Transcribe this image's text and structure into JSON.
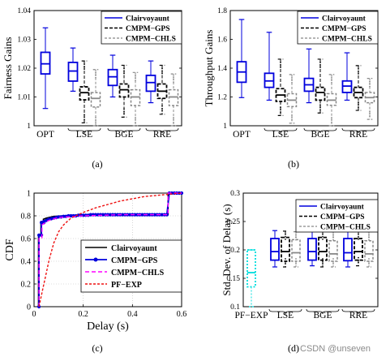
{
  "colors": {
    "clair": "#0000dd",
    "gps": "#000000",
    "chls": "#888888",
    "pfexp": "#ee1111",
    "pfbox": "#00dddd",
    "cdf_chls": "#ff00ff"
  },
  "watermark": "CSDN @unseven",
  "chart_data": [
    {
      "id": "a",
      "type": "box",
      "caption": "(a)",
      "ylabel": "Fairness Gains",
      "ylim": [
        1,
        1.04
      ],
      "yticks": [
        "1",
        "1.01",
        "1.02",
        "1.03",
        "1.04"
      ],
      "groups": [
        "OPT",
        "LSE",
        "BGE",
        "RRE"
      ],
      "legend": [
        "Clairvoyaunt",
        "CMPM−GPS",
        "CMPM−CHLS"
      ],
      "boxes": [
        {
          "group": 0,
          "series": 0,
          "min": 1.006,
          "q1": 1.018,
          "med": 1.0215,
          "q3": 1.0255,
          "max": 1.034
        },
        {
          "group": 1,
          "series": 0,
          "min": 1.012,
          "q1": 1.0155,
          "med": 1.019,
          "q3": 1.022,
          "max": 1.027
        },
        {
          "group": 1,
          "series": 1,
          "min": 1.001,
          "q1": 1.009,
          "med": 1.0115,
          "q3": 1.0135,
          "max": 1.0225
        },
        {
          "group": 1,
          "series": 2,
          "min": 1.0,
          "q1": 1.0065,
          "med": 1.0095,
          "q3": 1.0115,
          "max": 1.0195
        },
        {
          "group": 2,
          "series": 0,
          "min": 1.01,
          "q1": 1.014,
          "med": 1.017,
          "q3": 1.0195,
          "max": 1.0245
        },
        {
          "group": 2,
          "series": 1,
          "min": 1.003,
          "q1": 1.01,
          "med": 1.0125,
          "q3": 1.0145,
          "max": 1.021
        },
        {
          "group": 2,
          "series": 2,
          "min": 1.0,
          "q1": 1.007,
          "med": 1.01,
          "q3": 1.0125,
          "max": 1.0185
        },
        {
          "group": 3,
          "series": 0,
          "min": 1.008,
          "q1": 1.012,
          "med": 1.015,
          "q3": 1.0175,
          "max": 1.0225
        },
        {
          "group": 3,
          "series": 1,
          "min": 1.004,
          "q1": 1.0095,
          "med": 1.012,
          "q3": 1.0145,
          "max": 1.021
        },
        {
          "group": 3,
          "series": 2,
          "min": 1.0,
          "q1": 1.007,
          "med": 1.01,
          "q3": 1.0125,
          "max": 1.018
        }
      ]
    },
    {
      "id": "b",
      "type": "box",
      "caption": "(b)",
      "ylabel": "Throughput Gains",
      "ylim": [
        1,
        1.9
      ],
      "yticks": [
        "1",
        "1.2",
        "1.4",
        "1.6",
        "1.8"
      ],
      "groups": [
        "OPT",
        "LSE",
        "BGE",
        "RRE"
      ],
      "legend": [
        "Clairvoyaunt",
        "CMPM−GPS",
        "CMPM−CHLS"
      ],
      "boxes": [
        {
          "group": 0,
          "series": 0,
          "min": 1.22,
          "q1": 1.34,
          "med": 1.42,
          "q3": 1.5,
          "max": 1.83
        },
        {
          "group": 1,
          "series": 0,
          "min": 1.2,
          "q1": 1.3,
          "med": 1.35,
          "q3": 1.41,
          "max": 1.73
        },
        {
          "group": 1,
          "series": 1,
          "min": 1.08,
          "q1": 1.19,
          "med": 1.24,
          "q3": 1.29,
          "max": 1.52
        },
        {
          "group": 1,
          "series": 2,
          "min": 1.02,
          "q1": 1.15,
          "med": 1.2,
          "q3": 1.25,
          "max": 1.4
        },
        {
          "group": 2,
          "series": 0,
          "min": 1.18,
          "q1": 1.27,
          "med": 1.32,
          "q3": 1.37,
          "max": 1.6
        },
        {
          "group": 2,
          "series": 1,
          "min": 1.1,
          "q1": 1.2,
          "med": 1.26,
          "q3": 1.3,
          "max": 1.52
        },
        {
          "group": 2,
          "series": 2,
          "min": 1.0,
          "q1": 1.16,
          "med": 1.2,
          "q3": 1.25,
          "max": 1.4
        },
        {
          "group": 3,
          "series": 0,
          "min": 1.2,
          "q1": 1.26,
          "med": 1.31,
          "q3": 1.35,
          "max": 1.57
        },
        {
          "group": 3,
          "series": 1,
          "min": 1.12,
          "q1": 1.22,
          "med": 1.26,
          "q3": 1.3,
          "max": 1.47
        },
        {
          "group": 3,
          "series": 2,
          "min": 1.05,
          "q1": 1.18,
          "med": 1.22,
          "q3": 1.26,
          "max": 1.37
        }
      ]
    },
    {
      "id": "c",
      "type": "line",
      "caption": "(c)",
      "xlabel": "Delay (s)",
      "ylabel": "CDF",
      "xlim": [
        0,
        0.6
      ],
      "ylim": [
        0,
        1
      ],
      "xticks": [
        "0",
        "0.2",
        "0.4",
        "0.6"
      ],
      "yticks": [
        "0",
        "0.2",
        "0.4",
        "0.6",
        "0.8",
        "1"
      ],
      "grid": true,
      "legend_position": "lower-right",
      "series": [
        {
          "name": "Clairvoyaunt",
          "x": [
            0.018,
            0.018,
            0.028,
            0.028,
            0.038,
            0.038,
            0.05,
            0.08,
            0.12,
            0.2,
            0.35,
            0.54,
            0.545,
            0.545,
            0.6
          ],
          "y": [
            0,
            0.63,
            0.63,
            0.75,
            0.75,
            0.77,
            0.78,
            0.795,
            0.8,
            0.805,
            0.81,
            0.81,
            0.81,
            1,
            1
          ]
        },
        {
          "name": "CMPM−GPS",
          "x": [
            0.02,
            0.02,
            0.03,
            0.03,
            0.04,
            0.04,
            0.05,
            0.06,
            0.07,
            0.08,
            0.09,
            0.1,
            0.11,
            0.12,
            0.13,
            0.14,
            0.15,
            0.16,
            0.17,
            0.18,
            0.19,
            0.2,
            0.21,
            0.22,
            0.23,
            0.24,
            0.25,
            0.26,
            0.27,
            0.28,
            0.29,
            0.3,
            0.31,
            0.32,
            0.33,
            0.34,
            0.35,
            0.36,
            0.37,
            0.38,
            0.39,
            0.4,
            0.41,
            0.42,
            0.43,
            0.44,
            0.45,
            0.46,
            0.47,
            0.48,
            0.49,
            0.5,
            0.51,
            0.52,
            0.53,
            0.54,
            0.55,
            0.56,
            0.57,
            0.58,
            0.59,
            0.6
          ],
          "y": [
            0,
            0.63,
            0.63,
            0.74,
            0.74,
            0.75,
            0.76,
            0.77,
            0.775,
            0.78,
            0.785,
            0.79,
            0.79,
            0.795,
            0.795,
            0.8,
            0.8,
            0.8,
            0.8,
            0.805,
            0.805,
            0.805,
            0.805,
            0.805,
            0.81,
            0.81,
            0.81,
            0.81,
            0.81,
            0.81,
            0.81,
            0.81,
            0.81,
            0.81,
            0.81,
            0.81,
            0.81,
            0.81,
            0.81,
            0.81,
            0.81,
            0.81,
            0.81,
            0.81,
            0.81,
            0.81,
            0.81,
            0.81,
            0.81,
            0.81,
            0.81,
            0.81,
            0.81,
            0.81,
            0.81,
            0.81,
            1,
            1,
            1,
            1,
            1,
            1
          ]
        },
        {
          "name": "CMPM−CHLS",
          "x": [
            0.02,
            0.02,
            0.032,
            0.032,
            0.045,
            0.06,
            0.1,
            0.2,
            0.35,
            0.54,
            0.545,
            0.545,
            0.6
          ],
          "y": [
            0,
            0.6,
            0.6,
            0.72,
            0.74,
            0.76,
            0.785,
            0.8,
            0.81,
            0.81,
            0.81,
            1,
            1
          ]
        },
        {
          "name": "PF−EXP",
          "x": [
            0.02,
            0.03,
            0.04,
            0.05,
            0.06,
            0.07,
            0.08,
            0.1,
            0.12,
            0.15,
            0.2,
            0.25,
            0.3,
            0.35,
            0.4,
            0.45,
            0.5,
            0.55,
            0.6
          ],
          "y": [
            0,
            0.1,
            0.2,
            0.3,
            0.4,
            0.48,
            0.56,
            0.66,
            0.72,
            0.78,
            0.83,
            0.87,
            0.9,
            0.93,
            0.95,
            0.97,
            0.98,
            0.99,
            1
          ]
        }
      ]
    },
    {
      "id": "d",
      "type": "box",
      "caption": "(d)",
      "ylabel": "Std. Dev. of Delay (s)",
      "ylim": [
        0.1,
        0.3
      ],
      "yticks": [
        "0.1",
        "0.15",
        "0.2",
        "0.25",
        "0.3"
      ],
      "groups": [
        "PF−EXP",
        "LSE",
        "BGE",
        "RRE"
      ],
      "legend": [
        "Clairvoyaunt",
        "CMPM−GPS",
        "CMPM−CHLS"
      ],
      "boxes": [
        {
          "group": 0,
          "series": 3,
          "min": 0.1,
          "q1": 0.135,
          "med": 0.16,
          "q3": 0.2,
          "max": 0.2
        },
        {
          "group": 1,
          "series": 0,
          "min": 0.17,
          "q1": 0.182,
          "med": 0.197,
          "q3": 0.22,
          "max": 0.234
        },
        {
          "group": 1,
          "series": 1,
          "min": 0.17,
          "q1": 0.18,
          "med": 0.197,
          "q3": 0.222,
          "max": 0.233
        },
        {
          "group": 1,
          "series": 2,
          "min": 0.17,
          "q1": 0.18,
          "med": 0.195,
          "q3": 0.218,
          "max": 0.232
        },
        {
          "group": 2,
          "series": 0,
          "min": 0.172,
          "q1": 0.182,
          "med": 0.197,
          "q3": 0.22,
          "max": 0.233
        },
        {
          "group": 2,
          "series": 1,
          "min": 0.17,
          "q1": 0.182,
          "med": 0.197,
          "q3": 0.222,
          "max": 0.233
        },
        {
          "group": 2,
          "series": 2,
          "min": 0.17,
          "q1": 0.18,
          "med": 0.193,
          "q3": 0.216,
          "max": 0.232
        },
        {
          "group": 3,
          "series": 0,
          "min": 0.17,
          "q1": 0.181,
          "med": 0.195,
          "q3": 0.22,
          "max": 0.233
        },
        {
          "group": 3,
          "series": 1,
          "min": 0.172,
          "q1": 0.182,
          "med": 0.197,
          "q3": 0.22,
          "max": 0.233
        },
        {
          "group": 3,
          "series": 2,
          "min": 0.17,
          "q1": 0.18,
          "med": 0.193,
          "q3": 0.216,
          "max": 0.232
        }
      ]
    }
  ]
}
